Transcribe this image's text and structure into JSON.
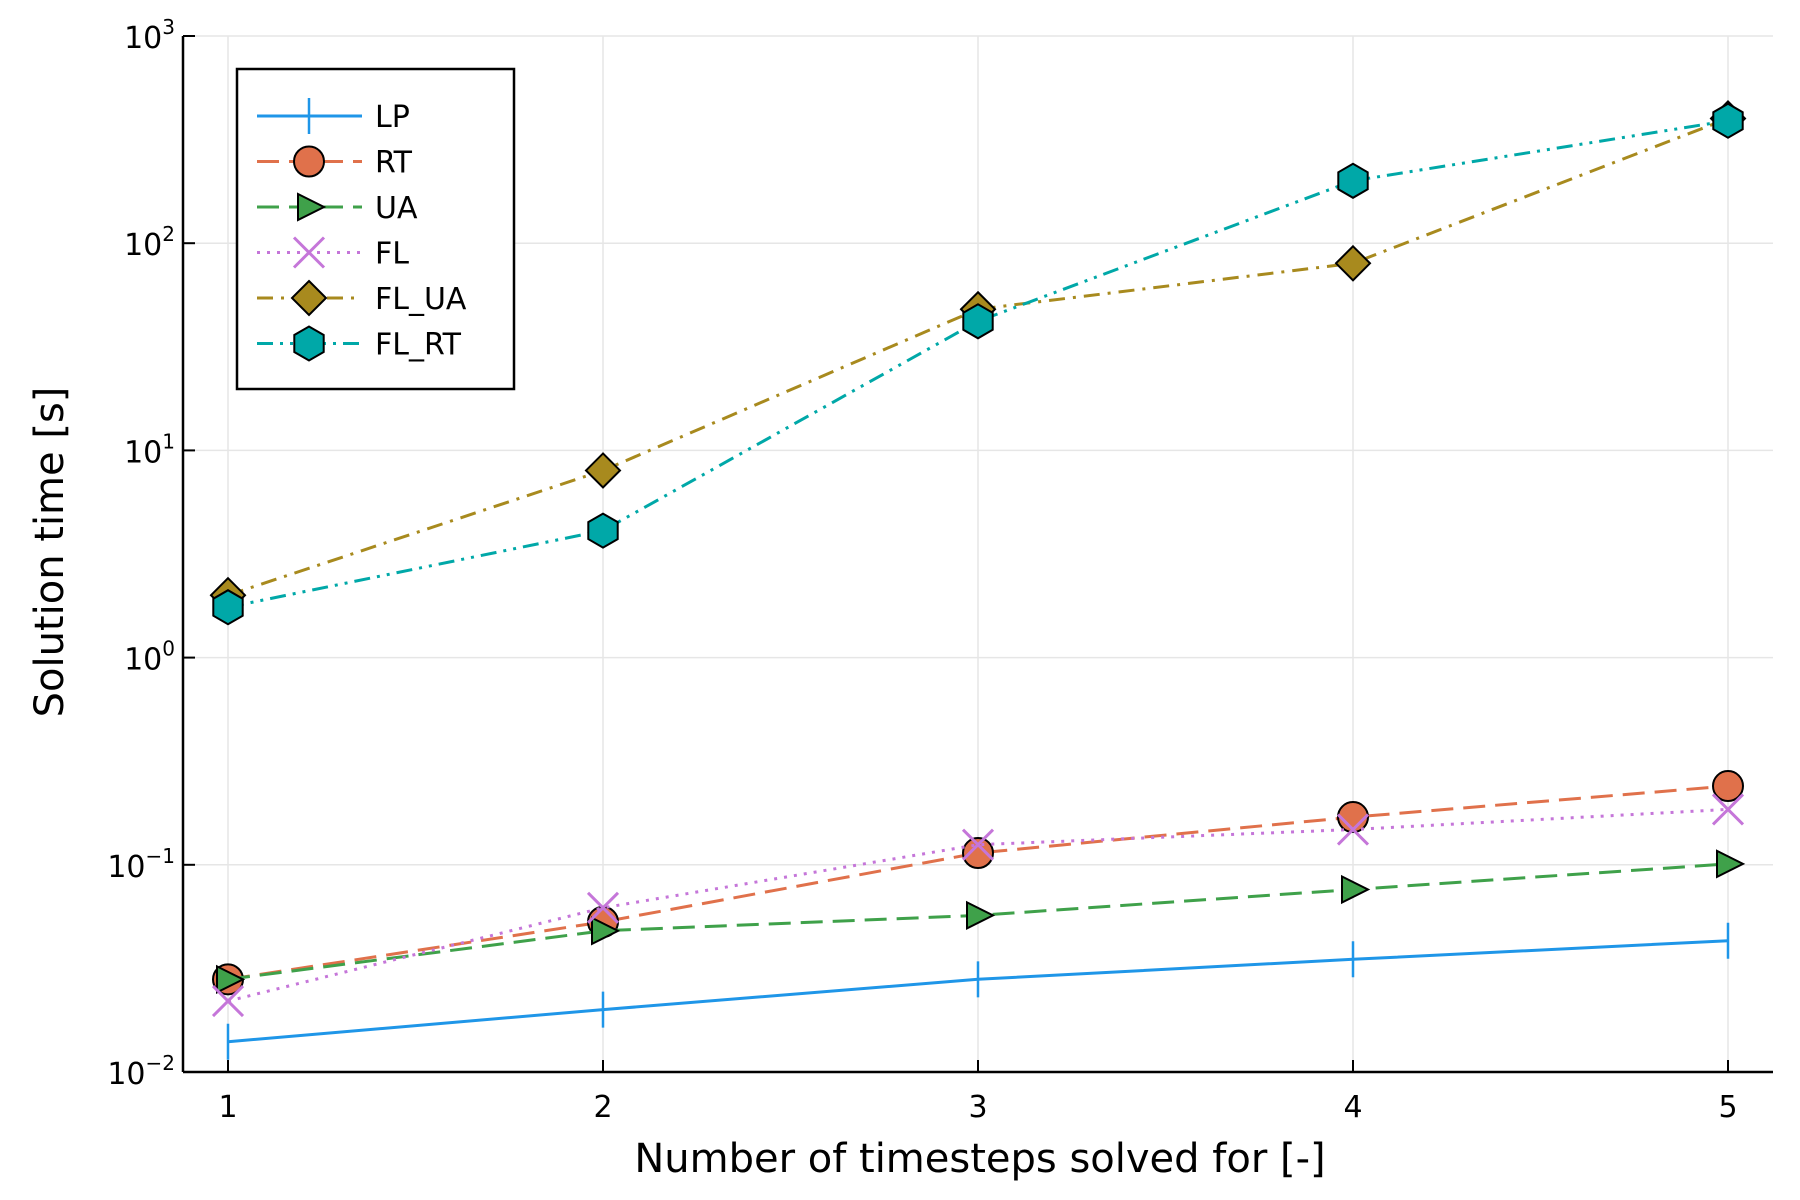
{
  "chart_data": {
    "type": "line",
    "xlabel": "Number of timesteps solved for [-]",
    "ylabel": "Solution time [s]",
    "yscale": "log",
    "xlim": [
      0.88,
      5.12
    ],
    "ylim": [
      0.01,
      1000
    ],
    "x_ticks": [
      1,
      2,
      3,
      4,
      5
    ],
    "y_ticks": [
      {
        "base": "10",
        "exp": "−2",
        "value": 0.01
      },
      {
        "base": "10",
        "exp": "−1",
        "value": 0.1
      },
      {
        "base": "10",
        "exp": "0",
        "value": 1
      },
      {
        "base": "10",
        "exp": "1",
        "value": 10
      },
      {
        "base": "10",
        "exp": "2",
        "value": 100
      },
      {
        "base": "10",
        "exp": "3",
        "value": 1000
      }
    ],
    "grid": true,
    "legend_position": "top-left",
    "x": [
      1,
      2,
      3,
      4,
      5
    ],
    "series": [
      {
        "name": "LP",
        "color": "#1f96e8",
        "marker": "vline",
        "dash": "solid",
        "values": [
          0.014,
          0.02,
          0.028,
          0.035,
          0.043
        ]
      },
      {
        "name": "RT",
        "color": "#e0714b",
        "marker": "circle",
        "dash": "dash",
        "values": [
          0.028,
          0.053,
          0.114,
          0.17,
          0.24
        ]
      },
      {
        "name": "UA",
        "color": "#3fa14a",
        "marker": "triangle-right",
        "dash": "dash",
        "values": [
          0.028,
          0.048,
          0.057,
          0.076,
          0.101
        ]
      },
      {
        "name": "FL",
        "color": "#c576d9",
        "marker": "cross",
        "dash": "dot",
        "values": [
          0.022,
          0.062,
          0.125,
          0.148,
          0.185
        ]
      },
      {
        "name": "FL_UA",
        "color": "#a88a1e",
        "marker": "diamond",
        "dash": "dashdot",
        "values": [
          2.0,
          8.0,
          48.0,
          80.0,
          400.0
        ]
      },
      {
        "name": "FL_RT",
        "color": "#00a8a8",
        "marker": "hexagon",
        "dash": "dashdotdot",
        "values": [
          1.75,
          4.1,
          42.0,
          200.0,
          390.0
        ]
      }
    ]
  }
}
